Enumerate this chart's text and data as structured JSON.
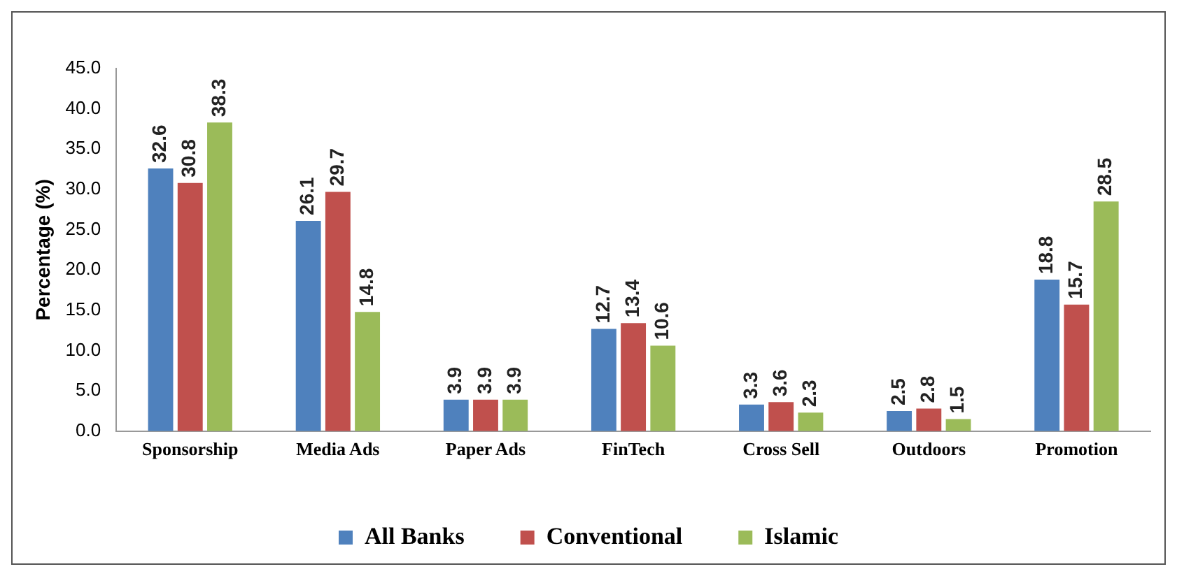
{
  "chart_data": {
    "type": "bar",
    "ylabel": "Percentage (%)",
    "categories": [
      "Sponsorship",
      "Media Ads",
      "Paper Ads",
      "FinTech",
      "Cross Sell",
      "Outdoors",
      "Promotion"
    ],
    "series": [
      {
        "name": "All Banks",
        "color": "#4f81bd",
        "values": [
          32.6,
          26.1,
          3.9,
          12.7,
          3.3,
          2.5,
          18.8
        ]
      },
      {
        "name": "Conventional",
        "color": "#c0504d",
        "values": [
          30.8,
          29.7,
          3.9,
          13.4,
          3.6,
          2.8,
          15.7
        ]
      },
      {
        "name": "Islamic",
        "color": "#9bbb59",
        "values": [
          38.3,
          14.8,
          3.9,
          10.6,
          2.3,
          1.5,
          28.5
        ]
      }
    ],
    "ylim": [
      0,
      45
    ],
    "yticks": [
      {
        "value": 0,
        "label": "0.0"
      },
      {
        "value": 5,
        "label": "5.0"
      },
      {
        "value": 10,
        "label": "10.0"
      },
      {
        "value": 15,
        "label": "15.0"
      },
      {
        "value": 20,
        "label": "20.0"
      },
      {
        "value": 25,
        "label": "25.0"
      },
      {
        "value": 30,
        "label": "30.0"
      },
      {
        "value": 35,
        "label": "35.0"
      },
      {
        "value": 40,
        "label": "40.0"
      },
      {
        "value": 45,
        "label": "45.0"
      }
    ],
    "grid": false,
    "legend": "bottom",
    "data_labels": true
  }
}
